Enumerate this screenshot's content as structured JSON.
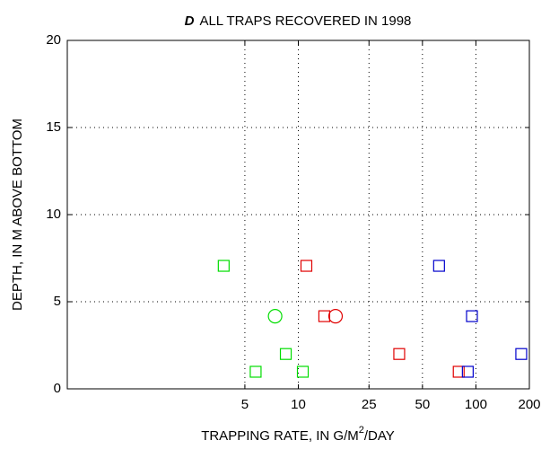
{
  "chart_data": {
    "type": "scatter",
    "panel_label": "D",
    "title": "ALL TRAPS RECOVERED IN 1998",
    "xlabel": [
      "TRAPPING RATE, IN G/M",
      "2",
      "/DAY"
    ],
    "ylabel": "DEPTH, IN M ABOVE BOTTOM",
    "xscale": "log",
    "xlim": [
      0.5,
      200
    ],
    "xticks": [
      5,
      10,
      25,
      50,
      100,
      200
    ],
    "ylim": [
      0,
      20
    ],
    "yticks": [
      0,
      5,
      10,
      15,
      20
    ],
    "grid": true,
    "series": [
      {
        "color": "#00dd00",
        "marker": "square",
        "x": [
          3.8,
          8.5,
          5.75,
          10.6
        ],
        "y": [
          7.06,
          2.0,
          0.98,
          0.98
        ]
      },
      {
        "color": "#00dd00",
        "marker": "circle",
        "x": [
          7.4
        ],
        "y": [
          4.17
        ]
      },
      {
        "color": "#e00000",
        "marker": "square",
        "x": [
          11.1,
          14,
          37,
          80
        ],
        "y": [
          7.06,
          4.17,
          2.0,
          0.98
        ]
      },
      {
        "color": "#e00000",
        "marker": "circle",
        "x": [
          16.2
        ],
        "y": [
          4.17
        ]
      },
      {
        "color": "#0000cc",
        "marker": "square",
        "x": [
          62,
          95,
          90,
          180
        ],
        "y": [
          7.06,
          4.17,
          0.98,
          2.0
        ]
      }
    ]
  }
}
